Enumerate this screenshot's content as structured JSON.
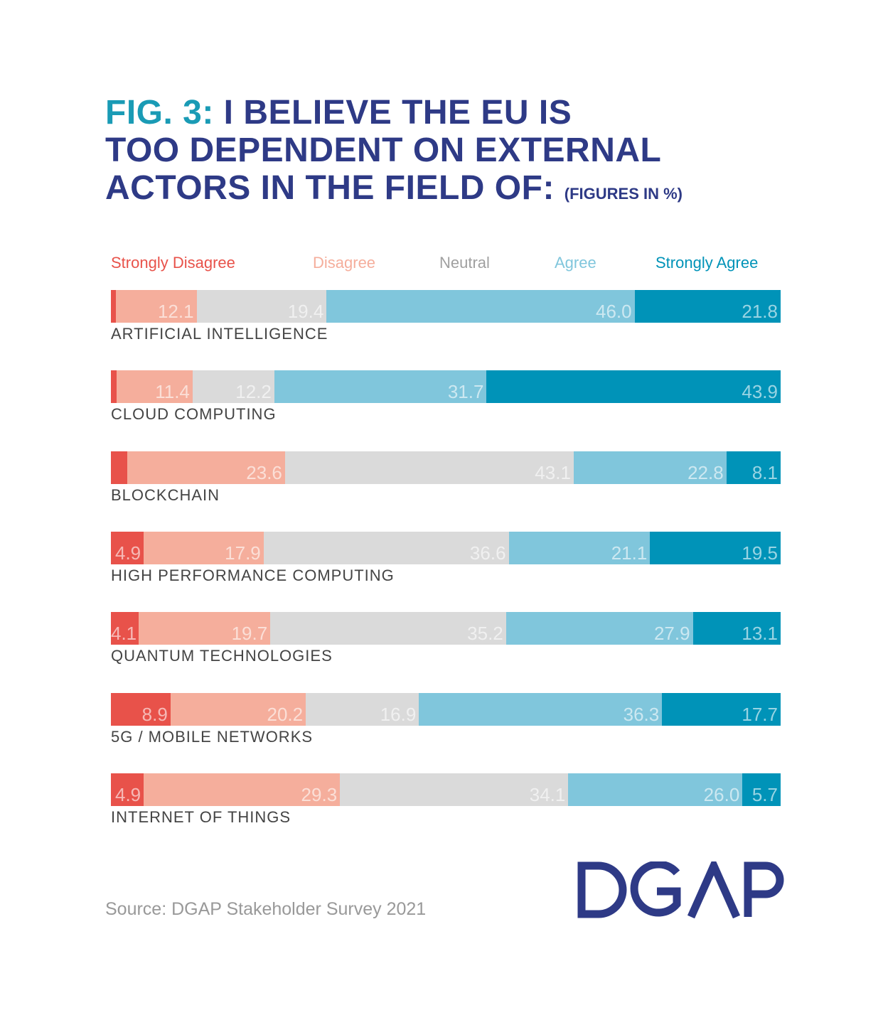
{
  "title": {
    "prefix": "FIG. 3:",
    "line1": " I BELIEVE THE EU IS",
    "line2": "TOO DEPENDENT ON EXTERNAL",
    "line3": "ACTORS IN THE FIELD OF: ",
    "units": "(FIGURES IN %)"
  },
  "chart_data": {
    "type": "bar",
    "orientation": "horizontal",
    "stacked": true,
    "xlim": [
      0,
      100
    ],
    "categories": [
      "ARTIFICIAL INTELLIGENCE",
      "CLOUD COMPUTING",
      "BLOCKCHAIN",
      "HIGH PERFORMANCE COMPUTING",
      "QUANTUM TECHNOLOGIES",
      "5G / MOBILE NETWORKS",
      "INTERNET OF THINGS"
    ],
    "legend_position": "top",
    "series": [
      {
        "name": "Strongly Disagree",
        "color": "#e8524a",
        "values": [
          0.7,
          0.8,
          2.4,
          4.9,
          4.1,
          8.9,
          4.9
        ],
        "labels": [
          "",
          "",
          "",
          "4.9",
          "4.1",
          "8.9",
          "4.9"
        ]
      },
      {
        "name": "Disagree",
        "color": "#f5ae9c",
        "values": [
          12.1,
          11.4,
          23.6,
          17.9,
          19.7,
          20.2,
          29.3
        ],
        "labels": [
          "12.1",
          "11.4",
          "23.6",
          "17.9",
          "19.7",
          "20.2",
          "29.3"
        ]
      },
      {
        "name": "Neutral",
        "color": "#dadada",
        "values": [
          19.4,
          12.2,
          43.1,
          36.6,
          35.2,
          16.9,
          34.1
        ],
        "labels": [
          "19.4",
          "12.2",
          "43.1",
          "36.6",
          "35.2",
          "16.9",
          "34.1"
        ]
      },
      {
        "name": "Agree",
        "color": "#80c6dc",
        "values": [
          46.0,
          31.7,
          22.8,
          21.1,
          27.9,
          36.3,
          26.0
        ],
        "labels": [
          "46.0",
          "31.7",
          "22.8",
          "21.1",
          "27.9",
          "36.3",
          "26.0"
        ]
      },
      {
        "name": "Strongly Agree",
        "color": "#0093b8",
        "values": [
          21.8,
          43.9,
          8.1,
          19.5,
          13.1,
          17.7,
          5.7
        ],
        "labels": [
          "21.8",
          "43.9",
          "8.1",
          "19.5",
          "13.1",
          "17.7",
          "5.7"
        ]
      }
    ]
  },
  "legend_text_colors": [
    "#e8524a",
    "#f5ae9c",
    "#a0a0a0",
    "#80c6dc",
    "#0093b8"
  ],
  "source": "Source: DGAP Stakeholder Survey 2021",
  "logo": "DGAP"
}
